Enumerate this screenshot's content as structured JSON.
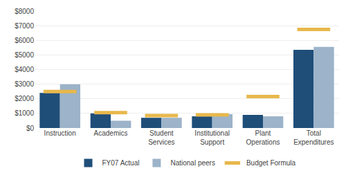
{
  "chart_data": {
    "type": "bar",
    "categories": [
      "Instruction",
      "Academics",
      "Student\nServices",
      "Institutional\nSupport",
      "Plant\nOperations",
      "Total\nExpenditures"
    ],
    "series": [
      {
        "name": "FY07 Actual",
        "type": "bar",
        "color": "#1f4e79",
        "values": [
          2400,
          1000,
          700,
          800,
          900,
          5350
        ]
      },
      {
        "name": "National peers",
        "type": "bar",
        "color": "#9cb3c9",
        "values": [
          3000,
          500,
          700,
          950,
          800,
          5550
        ]
      },
      {
        "name": "Budget Formula",
        "type": "scatter",
        "marker": "line-ew",
        "color": "#e8b84b",
        "values": [
          2500,
          1050,
          850,
          900,
          2150,
          6750
        ]
      }
    ],
    "ylim": [
      0,
      8000
    ],
    "yticks": [
      {
        "value": 0,
        "label": "$0"
      },
      {
        "value": 1000,
        "label": "$1000"
      },
      {
        "value": 2000,
        "label": "$2000"
      },
      {
        "value": 3000,
        "label": "$3000"
      },
      {
        "value": 4000,
        "label": "$4000"
      },
      {
        "value": 5000,
        "label": "$5000"
      },
      {
        "value": 6000,
        "label": "$6000"
      },
      {
        "value": 7000,
        "label": "$7000"
      },
      {
        "value": 8000,
        "label": "$8000"
      }
    ],
    "grid": true,
    "legend": "bottom"
  }
}
